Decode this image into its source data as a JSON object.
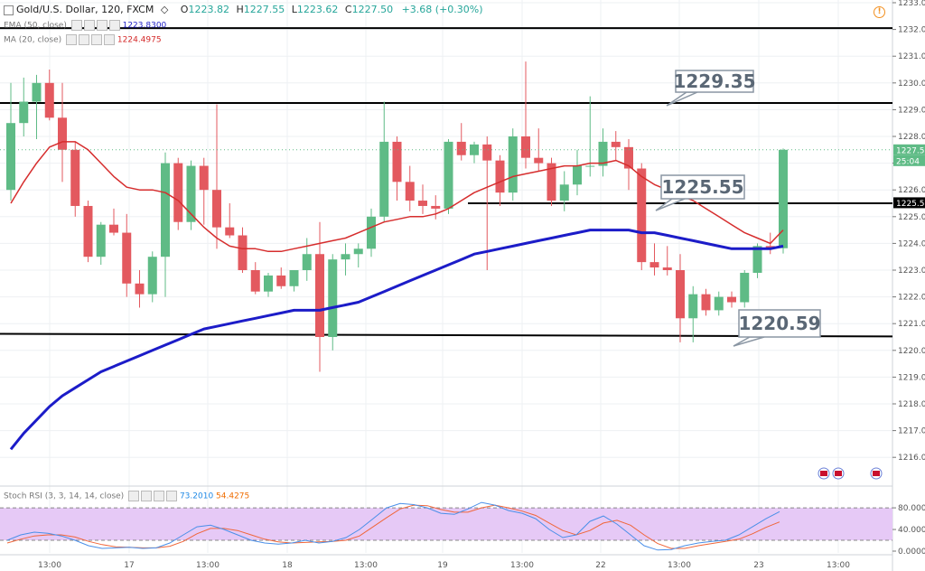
{
  "header": {
    "symbol": "Gold/U.S. Dollar, 120, FXCM",
    "o_label": "O",
    "o_value": "1223.82",
    "h_label": "H",
    "h_value": "1227.55",
    "l_label": "L",
    "l_value": "1223.62",
    "c_label": "C",
    "c_value": "1227.50",
    "change": "+3.68 (+0.30%)"
  },
  "indicators": {
    "ema_label": "EMA (50, close)",
    "ema_value": "1223.8300",
    "ma_label": "MA (20, close)",
    "ma_value": "1224.4975",
    "stoch_label": "Stoch RSI (3, 3, 14, 14, close)",
    "stoch_k": "73.2010",
    "stoch_d": "54.4275"
  },
  "colors": {
    "bull": "#5fbb86",
    "bear": "#e3595f",
    "ema": "#1c1cc8",
    "ma": "#d62d2d",
    "stoch_k": "#4a8fe8",
    "stoch_d": "#f0663a",
    "stoch_band": "#e6c9f6"
  },
  "price_axis": {
    "min": 1216,
    "max": 1233,
    "labels": [
      "1233.00",
      "1232.00",
      "1231.00",
      "1230.00",
      "1229.00",
      "1228.00",
      "1227.00",
      "1226.00",
      "1225.00",
      "1224.00",
      "1223.00",
      "1222.00",
      "1221.00",
      "1220.00",
      "1219.00",
      "1218.00",
      "1217.00",
      "1216.00"
    ],
    "last_price": "1227.50",
    "countdown": "25:04",
    "level_tag": "1225.52"
  },
  "stoch_axis": {
    "labels": [
      "80.0000",
      "40.0000",
      "0.0000"
    ],
    "overbought": 80,
    "oversold": 20
  },
  "time_axis": {
    "labels": [
      "13:00",
      "17",
      "13:00",
      "18",
      "13:00",
      "19",
      "13:00",
      "22",
      "13:00",
      "23",
      "13:00"
    ]
  },
  "annotations": [
    {
      "text": "1229.35"
    },
    {
      "text": "1225.55"
    },
    {
      "text": "1220.59"
    }
  ],
  "horizontal_levels": [
    1232.05,
    1229.25,
    1225.5,
    1220.6
  ],
  "chart_data": {
    "type": "candlestick",
    "candles": [
      {
        "o": 1226.0,
        "h": 1230.0,
        "l": 1225.6,
        "c": 1228.5
      },
      {
        "o": 1228.5,
        "h": 1230.2,
        "l": 1228.0,
        "c": 1229.3
      },
      {
        "o": 1229.3,
        "h": 1230.3,
        "l": 1227.9,
        "c": 1230.0
      },
      {
        "o": 1230.0,
        "h": 1230.5,
        "l": 1228.6,
        "c": 1228.7
      },
      {
        "o": 1228.7,
        "h": 1230.0,
        "l": 1226.3,
        "c": 1227.5
      },
      {
        "o": 1227.5,
        "h": 1227.8,
        "l": 1225.0,
        "c": 1225.4
      },
      {
        "o": 1225.4,
        "h": 1225.6,
        "l": 1223.3,
        "c": 1223.5
      },
      {
        "o": 1223.5,
        "h": 1224.8,
        "l": 1223.2,
        "c": 1224.7
      },
      {
        "o": 1224.7,
        "h": 1225.3,
        "l": 1224.3,
        "c": 1224.4
      },
      {
        "o": 1224.4,
        "h": 1225.1,
        "l": 1222.0,
        "c": 1222.5
      },
      {
        "o": 1222.5,
        "h": 1223.0,
        "l": 1221.6,
        "c": 1222.1
      },
      {
        "o": 1222.1,
        "h": 1223.7,
        "l": 1221.8,
        "c": 1223.5
      },
      {
        "o": 1223.5,
        "h": 1227.4,
        "l": 1222.0,
        "c": 1227.0
      },
      {
        "o": 1227.0,
        "h": 1227.2,
        "l": 1224.5,
        "c": 1224.8
      },
      {
        "o": 1224.8,
        "h": 1227.1,
        "l": 1224.5,
        "c": 1226.9
      },
      {
        "o": 1226.9,
        "h": 1227.2,
        "l": 1224.7,
        "c": 1226.0
      },
      {
        "o": 1226.0,
        "h": 1229.2,
        "l": 1223.8,
        "c": 1224.6
      },
      {
        "o": 1224.6,
        "h": 1225.5,
        "l": 1224.2,
        "c": 1224.3
      },
      {
        "o": 1224.3,
        "h": 1224.6,
        "l": 1222.9,
        "c": 1223.0
      },
      {
        "o": 1223.0,
        "h": 1223.3,
        "l": 1222.1,
        "c": 1222.2
      },
      {
        "o": 1222.2,
        "h": 1222.9,
        "l": 1222.0,
        "c": 1222.8
      },
      {
        "o": 1222.8,
        "h": 1223.1,
        "l": 1222.3,
        "c": 1222.4
      },
      {
        "o": 1222.4,
        "h": 1223.0,
        "l": 1222.2,
        "c": 1223.0
      },
      {
        "o": 1223.0,
        "h": 1224.2,
        "l": 1222.6,
        "c": 1223.6
      },
      {
        "o": 1223.6,
        "h": 1224.8,
        "l": 1219.2,
        "c": 1220.5
      },
      {
        "o": 1220.5,
        "h": 1223.6,
        "l": 1220.0,
        "c": 1223.4
      },
      {
        "o": 1223.4,
        "h": 1224.0,
        "l": 1222.8,
        "c": 1223.6
      },
      {
        "o": 1223.6,
        "h": 1224.0,
        "l": 1223.1,
        "c": 1223.8
      },
      {
        "o": 1223.8,
        "h": 1225.3,
        "l": 1223.5,
        "c": 1225.0
      },
      {
        "o": 1225.0,
        "h": 1229.3,
        "l": 1224.8,
        "c": 1227.8
      },
      {
        "o": 1227.8,
        "h": 1228.0,
        "l": 1225.6,
        "c": 1226.3
      },
      {
        "o": 1226.3,
        "h": 1226.9,
        "l": 1225.2,
        "c": 1225.6
      },
      {
        "o": 1225.6,
        "h": 1226.2,
        "l": 1225.1,
        "c": 1225.4
      },
      {
        "o": 1225.4,
        "h": 1225.8,
        "l": 1224.9,
        "c": 1225.3
      },
      {
        "o": 1225.3,
        "h": 1227.9,
        "l": 1225.1,
        "c": 1227.8
      },
      {
        "o": 1227.8,
        "h": 1228.5,
        "l": 1227.1,
        "c": 1227.3
      },
      {
        "o": 1227.3,
        "h": 1227.8,
        "l": 1227.0,
        "c": 1227.7
      },
      {
        "o": 1227.7,
        "h": 1228.0,
        "l": 1223.0,
        "c": 1227.1
      },
      {
        "o": 1227.1,
        "h": 1227.3,
        "l": 1225.4,
        "c": 1225.9
      },
      {
        "o": 1225.9,
        "h": 1228.3,
        "l": 1225.6,
        "c": 1228.0
      },
      {
        "o": 1228.0,
        "h": 1230.8,
        "l": 1226.8,
        "c": 1227.2
      },
      {
        "o": 1227.2,
        "h": 1228.3,
        "l": 1226.7,
        "c": 1227.0
      },
      {
        "o": 1227.0,
        "h": 1227.2,
        "l": 1225.4,
        "c": 1225.6
      },
      {
        "o": 1225.6,
        "h": 1226.7,
        "l": 1225.2,
        "c": 1226.2
      },
      {
        "o": 1226.2,
        "h": 1227.5,
        "l": 1225.8,
        "c": 1226.9
      },
      {
        "o": 1226.9,
        "h": 1229.5,
        "l": 1226.5,
        "c": 1226.9
      },
      {
        "o": 1226.9,
        "h": 1228.3,
        "l": 1226.5,
        "c": 1227.8
      },
      {
        "o": 1227.8,
        "h": 1228.2,
        "l": 1227.1,
        "c": 1227.6
      },
      {
        "o": 1227.6,
        "h": 1227.9,
        "l": 1226.0,
        "c": 1226.8
      },
      {
        "o": 1226.8,
        "h": 1227.0,
        "l": 1223.0,
        "c": 1223.3
      },
      {
        "o": 1223.3,
        "h": 1224.0,
        "l": 1222.8,
        "c": 1223.1
      },
      {
        "o": 1223.1,
        "h": 1223.9,
        "l": 1222.8,
        "c": 1223.0
      },
      {
        "o": 1223.0,
        "h": 1223.6,
        "l": 1220.3,
        "c": 1221.2
      },
      {
        "o": 1221.2,
        "h": 1222.4,
        "l": 1220.3,
        "c": 1222.1
      },
      {
        "o": 1222.1,
        "h": 1222.3,
        "l": 1221.3,
        "c": 1221.5
      },
      {
        "o": 1221.5,
        "h": 1222.2,
        "l": 1221.3,
        "c": 1222.0
      },
      {
        "o": 1222.0,
        "h": 1222.2,
        "l": 1221.6,
        "c": 1221.8
      },
      {
        "o": 1221.8,
        "h": 1223.0,
        "l": 1221.6,
        "c": 1222.9
      },
      {
        "o": 1222.9,
        "h": 1224.0,
        "l": 1222.7,
        "c": 1223.9
      },
      {
        "o": 1223.9,
        "h": 1224.4,
        "l": 1223.6,
        "c": 1223.8
      },
      {
        "o": 1223.82,
        "h": 1227.55,
        "l": 1223.62,
        "c": 1227.5
      }
    ],
    "ma20": [
      1225.5,
      1226.3,
      1227.0,
      1227.6,
      1227.8,
      1227.8,
      1227.5,
      1227.0,
      1226.5,
      1226.1,
      1226.0,
      1226.0,
      1225.9,
      1225.6,
      1225.1,
      1224.6,
      1224.2,
      1223.9,
      1223.8,
      1223.8,
      1223.7,
      1223.7,
      1223.8,
      1223.9,
      1224.0,
      1224.1,
      1224.2,
      1224.4,
      1224.6,
      1224.8,
      1224.9,
      1225.0,
      1225.0,
      1225.1,
      1225.3,
      1225.6,
      1225.9,
      1226.1,
      1226.3,
      1226.5,
      1226.6,
      1226.7,
      1226.8,
      1226.9,
      1226.9,
      1227.0,
      1227.0,
      1227.1,
      1226.9,
      1226.5,
      1226.2,
      1226.0,
      1225.8,
      1225.6,
      1225.3,
      1225.0,
      1224.7,
      1224.4,
      1224.2,
      1224.0,
      1224.5
    ],
    "ema50": [
      1216.3,
      1216.9,
      1217.4,
      1217.9,
      1218.3,
      1218.6,
      1218.9,
      1219.2,
      1219.4,
      1219.6,
      1219.8,
      1220.0,
      1220.2,
      1220.4,
      1220.6,
      1220.8,
      1220.9,
      1221.0,
      1221.1,
      1221.2,
      1221.3,
      1221.4,
      1221.5,
      1221.5,
      1221.5,
      1221.6,
      1221.7,
      1221.8,
      1222.0,
      1222.2,
      1222.4,
      1222.6,
      1222.8,
      1223.0,
      1223.2,
      1223.4,
      1223.6,
      1223.7,
      1223.8,
      1223.9,
      1224.0,
      1224.1,
      1224.2,
      1224.3,
      1224.4,
      1224.5,
      1224.5,
      1224.5,
      1224.5,
      1224.4,
      1224.4,
      1224.3,
      1224.2,
      1224.1,
      1224.0,
      1223.9,
      1223.8,
      1223.8,
      1223.8,
      1223.8,
      1223.9
    ],
    "stoch_k": [
      20,
      30,
      35,
      33,
      28,
      20,
      10,
      5,
      6,
      7,
      5,
      6,
      15,
      30,
      45,
      48,
      40,
      30,
      20,
      15,
      13,
      15,
      20,
      15,
      18,
      25,
      40,
      60,
      80,
      88,
      86,
      80,
      70,
      68,
      78,
      90,
      85,
      75,
      70,
      60,
      40,
      25,
      30,
      55,
      65,
      50,
      30,
      10,
      2,
      3,
      10,
      15,
      18,
      20,
      30,
      45,
      60,
      73
    ],
    "stoch_d": [
      15,
      22,
      28,
      30,
      30,
      26,
      18,
      12,
      8,
      7,
      6,
      6,
      9,
      18,
      32,
      42,
      42,
      38,
      30,
      22,
      17,
      15,
      16,
      17,
      18,
      20,
      28,
      45,
      62,
      78,
      85,
      84,
      77,
      72,
      72,
      80,
      85,
      80,
      74,
      66,
      52,
      38,
      30,
      38,
      52,
      57,
      48,
      30,
      14,
      5,
      5,
      10,
      14,
      18,
      22,
      32,
      44,
      54
    ]
  }
}
